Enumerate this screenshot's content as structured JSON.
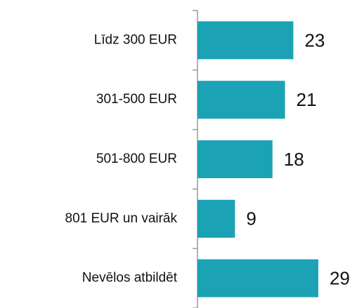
{
  "chart_data": {
    "type": "bar",
    "orientation": "horizontal",
    "categories": [
      "Līdz 300 EUR",
      "301-500 EUR",
      "501-800 EUR",
      "801 EUR un vairāk",
      "Nevēlos atbildēt"
    ],
    "values": [
      23,
      21,
      18,
      9,
      29
    ],
    "color": "#1ba3b5"
  }
}
